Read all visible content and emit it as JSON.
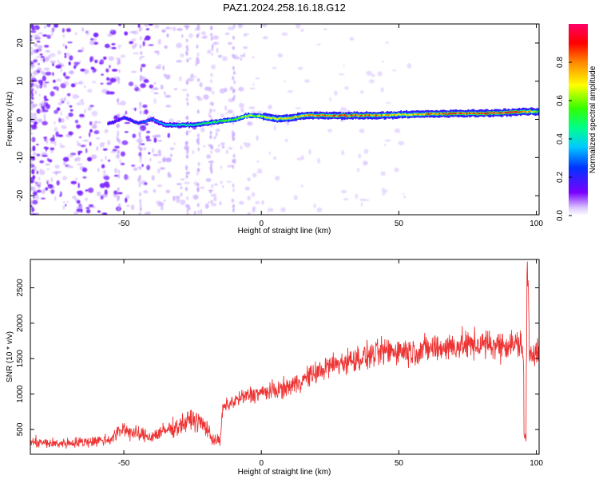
{
  "figure": {
    "title": "PAZ1.2024.258.16.18.G12"
  },
  "chart_data": [
    {
      "type": "heatmap",
      "title": "PAZ1.2024.258.16.18.G12",
      "xlabel": "Height of straight line (km)",
      "ylabel": "Frequency (Hz)",
      "xlim": [
        -84,
        101
      ],
      "ylim": [
        -25,
        25
      ],
      "x_ticks": [
        -50,
        0,
        50,
        100
      ],
      "y_ticks": [
        -20,
        -10,
        0,
        10,
        20
      ],
      "colorbar": {
        "label": "Normalized spectral amplitude",
        "range": [
          0,
          1
        ],
        "ticks": [
          0.0,
          0.2,
          0.4,
          0.6,
          0.8
        ],
        "colormap": [
          "#ffffff",
          "#7a00ff",
          "#0033ff",
          "#00ccff",
          "#00ff88",
          "#33ff00",
          "#ffff00",
          "#ff8800",
          "#ff0000",
          "#ff0066"
        ]
      },
      "ridge": {
        "x": [
          -55,
          -50,
          -45,
          -40,
          -35,
          -30,
          -25,
          -20,
          -15,
          -10,
          -5,
          0,
          5,
          10,
          15,
          20,
          30,
          40,
          50,
          60,
          70,
          80,
          90,
          95,
          100
        ],
        "freq": [
          -1.0,
          0.5,
          -1.0,
          0.0,
          -1.5,
          -1.5,
          -1.5,
          -1.0,
          -0.5,
          0.0,
          1.0,
          0.8,
          0.2,
          0.3,
          1.0,
          1.0,
          1.0,
          1.0,
          1.2,
          1.4,
          1.5,
          1.6,
          1.8,
          2.0,
          2.0
        ],
        "amplitude": [
          0.2,
          0.25,
          0.25,
          0.3,
          0.4,
          0.45,
          0.45,
          0.5,
          0.55,
          0.6,
          0.65,
          0.65,
          0.7,
          0.75,
          0.8,
          0.85,
          0.9,
          0.85,
          0.7,
          0.8,
          0.9,
          0.9,
          0.95,
          0.9,
          0.6
        ]
      }
    },
    {
      "type": "line",
      "xlabel": "Height of straight line (km)",
      "ylabel": "SNR (10 * v/v)",
      "xlim": [
        -84,
        101
      ],
      "ylim": [
        150,
        2900
      ],
      "x_ticks": [
        -50,
        0,
        50,
        100
      ],
      "y_ticks": [
        500,
        1000,
        1500,
        2000,
        2500
      ],
      "color": "#ee3333",
      "series": [
        {
          "x": [
            -84,
            -75,
            -65,
            -55,
            -50,
            -48,
            -45,
            -40,
            -35,
            -30,
            -25,
            -20,
            -18,
            -15,
            -14,
            -10,
            -5,
            0,
            5,
            10,
            15,
            20,
            25,
            30,
            35,
            40,
            45,
            50,
            55,
            60,
            65,
            70,
            75,
            80,
            85,
            90,
            95,
            96,
            97,
            97.5,
            100
          ],
          "y": [
            320,
            300,
            320,
            360,
            520,
            470,
            430,
            400,
            480,
            550,
            650,
            540,
            370,
            330,
            800,
            900,
            980,
            1020,
            1050,
            1100,
            1200,
            1300,
            1400,
            1450,
            1500,
            1550,
            1600,
            1620,
            1600,
            1640,
            1650,
            1680,
            1690,
            1700,
            1690,
            1700,
            1700,
            800,
            2500,
            1600,
            1600
          ]
        }
      ]
    }
  ]
}
